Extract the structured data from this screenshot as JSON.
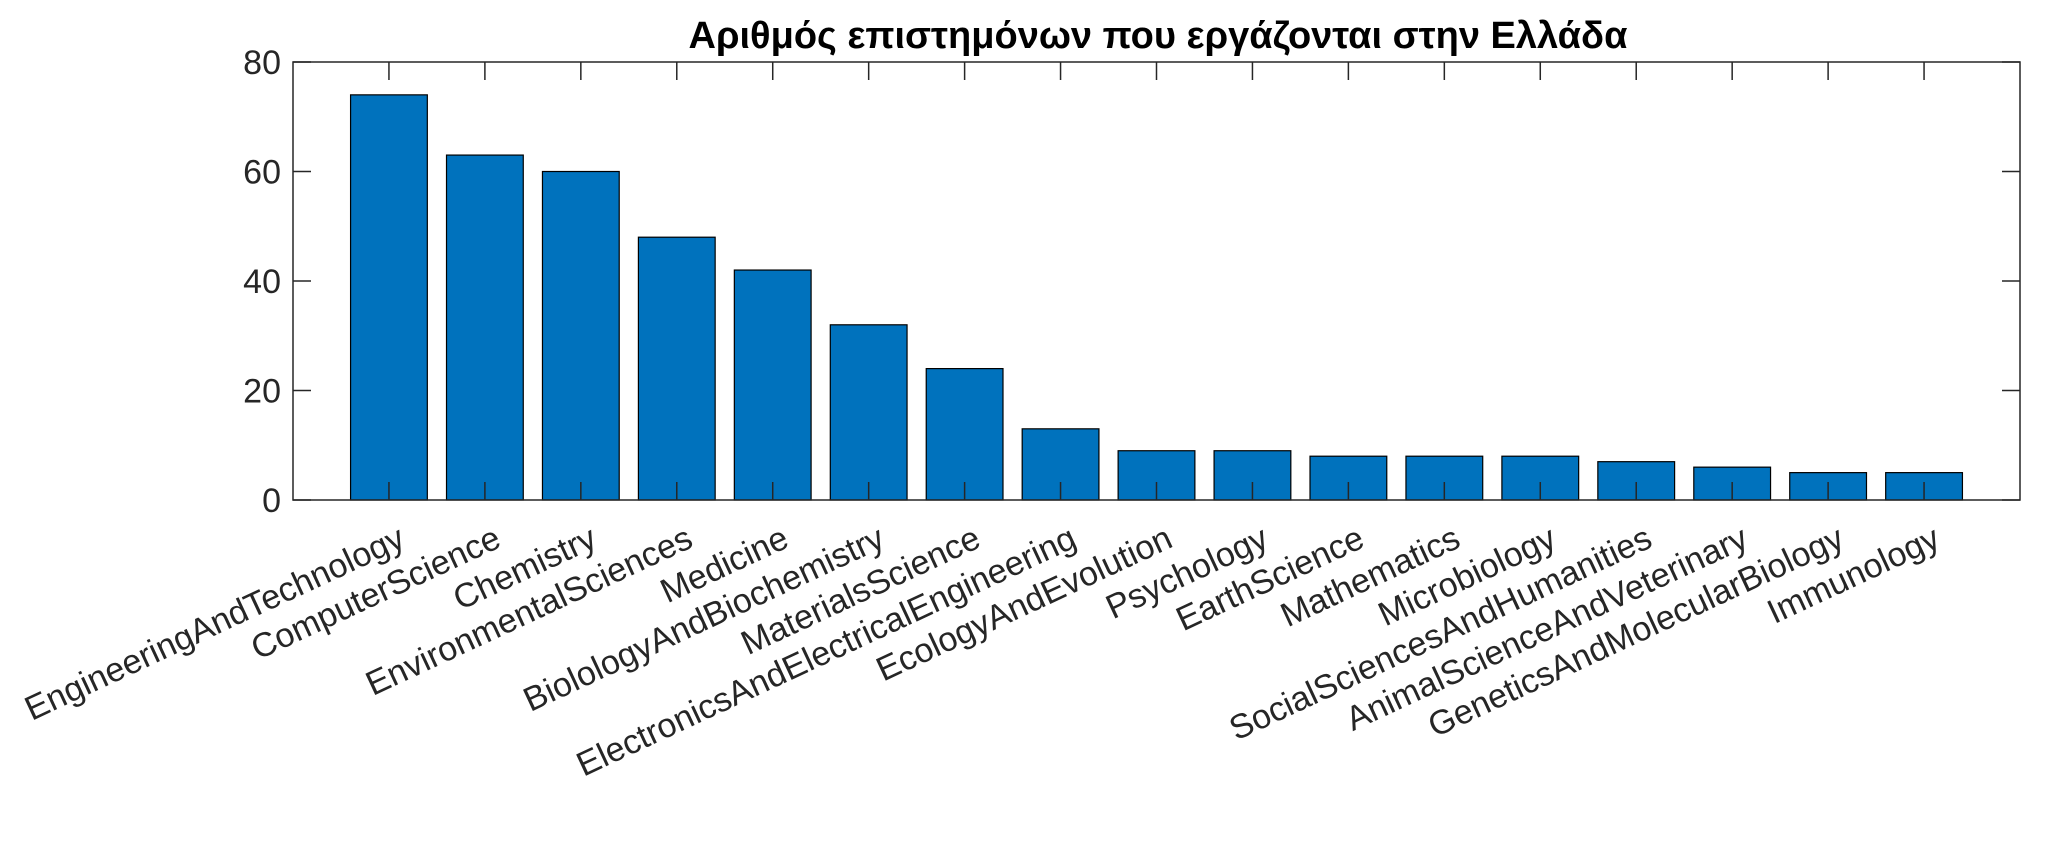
{
  "chart_data": {
    "type": "bar",
    "title": "Αριθμός επιστημόνων που εργάζονται στην Ελλάδα",
    "xlabel": "",
    "ylabel": "",
    "ylim": [
      0,
      80
    ],
    "yticks": [
      0,
      20,
      40,
      60,
      80
    ],
    "ytick_labels": [
      "0",
      "20",
      "40",
      "60",
      "80"
    ],
    "grid": false,
    "legend": "none",
    "bar_color": "#0072BD",
    "categories": [
      "EngineeringAndTechnology",
      "ComputerScience",
      "Chemistry",
      "EnvironmentalSciences",
      "Medicine",
      "BiolologyAndBiochemistry",
      "MaterialsScience",
      "ElectronicsAndElectricalEngineering",
      "EcologyAndEvolution",
      "Psychology",
      "EarthScience",
      "Mathematics",
      "Microbiology",
      "SocialSciencesAndHumanities",
      "AnimalScienceAndVeterinary",
      "GeneticsAndMolecularBiology",
      "Immunology"
    ],
    "values": [
      74,
      63,
      60,
      48,
      42,
      32,
      24,
      13,
      9,
      9,
      8,
      8,
      8,
      7,
      6,
      5,
      5
    ]
  }
}
